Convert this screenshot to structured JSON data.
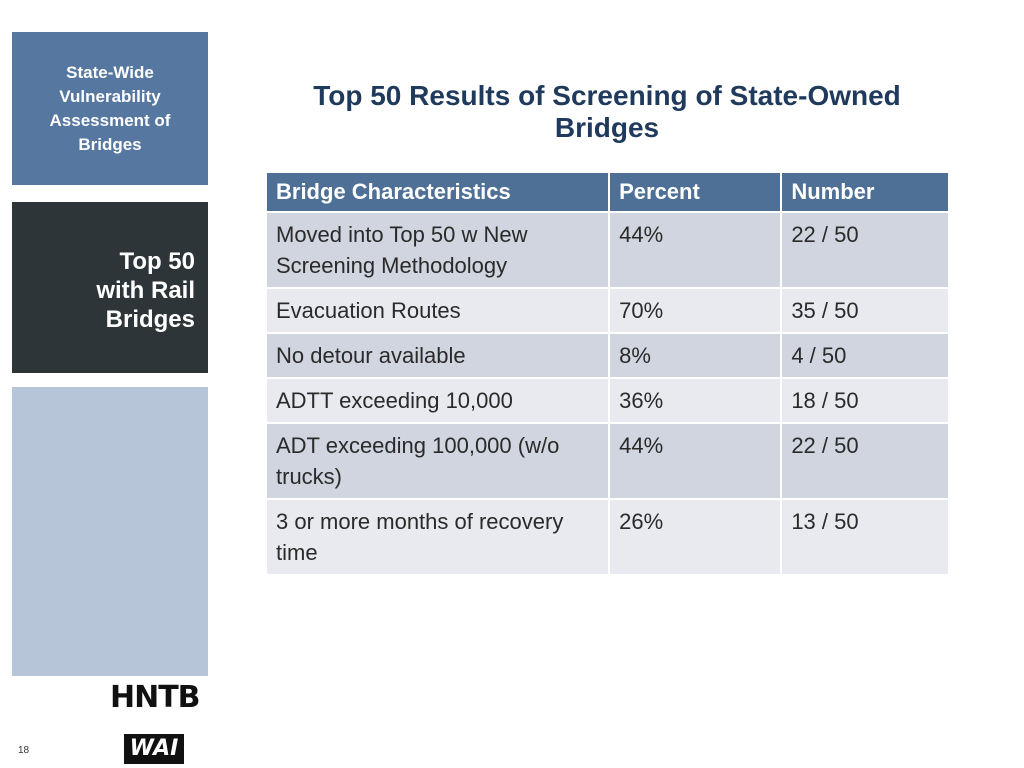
{
  "sidebar": {
    "deck_title": "State-Wide Vulnerability Assessment of Bridges",
    "section": "Top 50 with Rail Bridges"
  },
  "title": "Top 50 Results of Screening of State-Owned Bridges",
  "table": {
    "header": [
      "Bridge Characteristics",
      "Percent",
      "Number"
    ],
    "rows": [
      [
        "Moved into Top 50 w New Screening Methodology",
        "44%",
        "22 / 50"
      ],
      [
        "Evacuation Routes",
        "70%",
        "35 / 50"
      ],
      [
        "No detour available",
        "8%",
        "4 / 50"
      ],
      [
        "ADTT exceeding 10,000",
        "36%",
        "18 / 50"
      ],
      [
        "ADT exceeding 100,000 (w/o trucks)",
        "44%",
        "22 / 50"
      ],
      [
        "3 or more months of recovery time",
        "26%",
        "13 / 50"
      ]
    ]
  },
  "footer": {
    "page_number": "18",
    "logo_top": "HNTB",
    "logo_bottom": "WAI"
  }
}
